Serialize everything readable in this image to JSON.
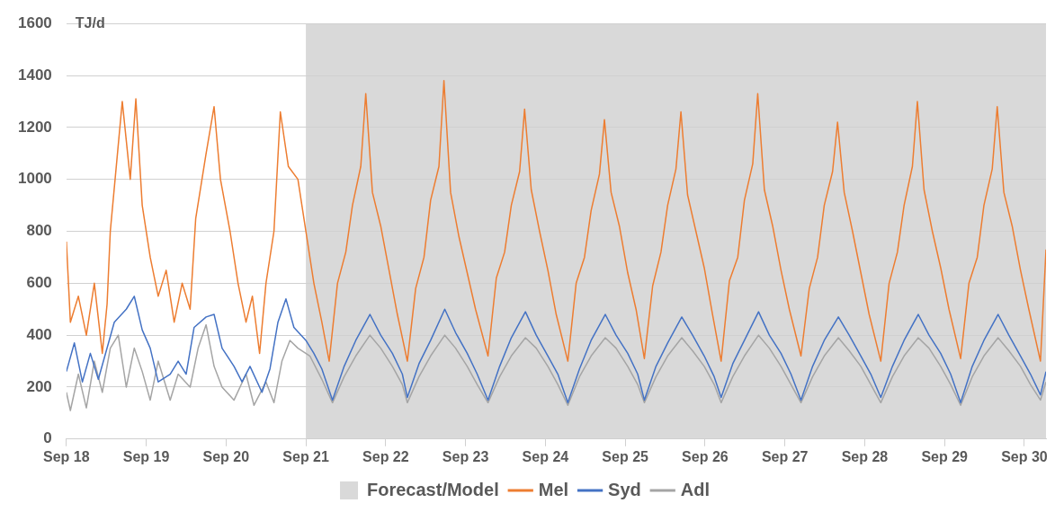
{
  "chart_data": {
    "type": "line",
    "ylabel": "TJ/d",
    "xlim": [
      "--09-18T00:00",
      "--09-30T06:30"
    ],
    "ylim": [
      0,
      1600
    ],
    "xticks": [
      {
        "value": "--09-18",
        "label": "Sep 18"
      },
      {
        "value": "--09-19",
        "label": "Sep 19"
      },
      {
        "value": "--09-20",
        "label": "Sep 20"
      },
      {
        "value": "--09-21",
        "label": "Sep 21"
      },
      {
        "value": "--09-22",
        "label": "Sep 22"
      },
      {
        "value": "--09-23",
        "label": "Sep 23"
      },
      {
        "value": "--09-24",
        "label": "Sep 24"
      },
      {
        "value": "--09-25",
        "label": "Sep 25"
      },
      {
        "value": "--09-26",
        "label": "Sep 26"
      },
      {
        "value": "--09-27",
        "label": "Sep 27"
      },
      {
        "value": "--09-28",
        "label": "Sep 28"
      },
      {
        "value": "--09-29",
        "label": "Sep 29"
      },
      {
        "value": "--09-30",
        "label": "Sep 30"
      }
    ],
    "yticks": [
      0,
      200,
      400,
      600,
      800,
      1000,
      1200,
      1400,
      1600
    ],
    "grid": "y",
    "legend": "bottom",
    "marker": "none",
    "line_style": "solid",
    "bands": [
      {
        "axis": "x",
        "from": "--09-21T00:00",
        "to": "--09-30T06:30",
        "label": "Forecast/Model",
        "color": "#d9d9d9"
      }
    ],
    "series": [
      {
        "name": "Mel",
        "color": "#ed7d31",
        "x": [
          "--09-18T00:00",
          "--09-18T01:12",
          "--09-18T03:36",
          "--09-18T06:00",
          "--09-18T08:24",
          "--09-18T10:48",
          "--09-18T12:14",
          "--09-18T13:12",
          "--09-18T16:48",
          "--09-18T19:12",
          "--09-18T20:53",
          "--09-18T22:48",
          "--09-19T01:12",
          "--09-19T03:36",
          "--09-19T06:00",
          "--09-19T08:24",
          "--09-19T10:48",
          "--09-19T13:12",
          "--09-19T14:53",
          "--09-19T18:00",
          "--09-19T20:24",
          "--09-19T22:19",
          "--09-20T01:12",
          "--09-20T03:36",
          "--09-20T06:00",
          "--09-20T07:55",
          "--09-20T10:05",
          "--09-20T12:00",
          "--09-20T14:24",
          "--09-20T16:19",
          "--09-20T18:43",
          "--09-20T21:36",
          "--09-21T00:00",
          "--09-21T02:24",
          "--09-21T04:48",
          "--09-21T07:00",
          "--09-21T09:30",
          "--09-21T12:00",
          "--09-21T14:00",
          "--09-21T16:30",
          "--09-21T18:00",
          "--09-21T20:00",
          "--09-21T22:30",
          "--09-22T01:00",
          "--09-22T03:30",
          "--09-22T06:30",
          "--09-22T09:00",
          "--09-22T11:30",
          "--09-22T13:30",
          "--09-22T16:00",
          "--09-22T17:30",
          "--09-22T19:30",
          "--09-22T22:00",
          "--09-23T00:30",
          "--09-23T03:00",
          "--09-23T06:45",
          "--09-23T09:15",
          "--09-23T11:45",
          "--09-23T13:45",
          "--09-23T16:15",
          "--09-23T17:45",
          "--09-23T19:45",
          "--09-23T22:15",
          "--09-24T00:45",
          "--09-24T03:15",
          "--09-24T06:45",
          "--09-24T09:15",
          "--09-24T11:45",
          "--09-24T13:45",
          "--09-24T16:15",
          "--09-24T17:45",
          "--09-24T19:45",
          "--09-24T22:15",
          "--09-25T00:45",
          "--09-25T03:15",
          "--09-25T05:45",
          "--09-25T08:15",
          "--09-25T10:45",
          "--09-25T12:45",
          "--09-25T15:15",
          "--09-25T16:45",
          "--09-25T18:45",
          "--09-25T21:15",
          "--09-25T23:45",
          "--09-26T02:15",
          "--09-26T04:50",
          "--09-26T07:20",
          "--09-26T09:50",
          "--09-26T11:50",
          "--09-26T14:20",
          "--09-26T15:50",
          "--09-26T17:50",
          "--09-26T20:20",
          "--09-26T22:50",
          "--09-27T01:20",
          "--09-27T04:50",
          "--09-27T07:20",
          "--09-27T09:50",
          "--09-27T11:50",
          "--09-27T14:20",
          "--09-27T15:50",
          "--09-27T17:50",
          "--09-27T20:20",
          "--09-27T22:50",
          "--09-28T01:20",
          "--09-28T04:50",
          "--09-28T07:20",
          "--09-28T09:50",
          "--09-28T11:50",
          "--09-28T14:20",
          "--09-28T15:50",
          "--09-28T17:50",
          "--09-28T20:20",
          "--09-28T22:50",
          "--09-29T01:20",
          "--09-29T04:50",
          "--09-29T07:20",
          "--09-29T09:50",
          "--09-29T11:50",
          "--09-29T14:20",
          "--09-29T15:50",
          "--09-29T17:50",
          "--09-29T20:20",
          "--09-29T22:50",
          "--09-30T01:20",
          "--09-30T04:50",
          "--09-30T06:30"
        ],
        "values": [
          760,
          450,
          550,
          400,
          600,
          330,
          520,
          800,
          1300,
          1000,
          1310,
          900,
          700,
          550,
          650,
          450,
          600,
          500,
          850,
          1100,
          1280,
          1000,
          800,
          600,
          450,
          550,
          330,
          600,
          800,
          1260,
          1050,
          1000,
          800,
          600,
          450,
          300,
          600,
          720,
          900,
          1050,
          1330,
          950,
          820,
          650,
          480,
          300,
          580,
          700,
          920,
          1050,
          1380,
          950,
          780,
          640,
          500,
          320,
          620,
          720,
          900,
          1030,
          1270,
          960,
          800,
          650,
          480,
          300,
          600,
          700,
          880,
          1020,
          1230,
          950,
          820,
          640,
          500,
          310,
          590,
          720,
          900,
          1040,
          1260,
          940,
          800,
          660,
          480,
          300,
          610,
          700,
          920,
          1060,
          1330,
          960,
          820,
          650,
          500,
          320,
          580,
          700,
          900,
          1030,
          1220,
          950,
          800,
          640,
          480,
          300,
          600,
          720,
          900,
          1050,
          1300,
          960,
          800,
          660,
          500,
          310,
          600,
          700,
          900,
          1040,
          1280,
          950,
          820,
          650,
          500,
          300,
          730
        ]
      },
      {
        "name": "Syd",
        "color": "#4472c4",
        "x": [
          "--09-18T00:00",
          "--09-18T02:24",
          "--09-18T04:48",
          "--09-18T07:12",
          "--09-18T09:36",
          "--09-18T12:00",
          "--09-18T14:24",
          "--09-18T18:00",
          "--09-18T20:24",
          "--09-18T22:48",
          "--09-19T01:12",
          "--09-19T03:36",
          "--09-19T07:12",
          "--09-19T09:36",
          "--09-19T12:00",
          "--09-19T14:24",
          "--09-19T18:00",
          "--09-19T20:24",
          "--09-19T22:48",
          "--09-20T02:24",
          "--09-20T04:48",
          "--09-20T07:12",
          "--09-20T10:48",
          "--09-20T13:12",
          "--09-20T15:36",
          "--09-20T18:00",
          "--09-20T20:24",
          "--09-21T00:00",
          "--09-21T02:24",
          "--09-21T04:48",
          "--09-21T08:00",
          "--09-21T11:30",
          "--09-21T15:00",
          "--09-21T19:15",
          "--09-21T22:30",
          "--09-22T02:00",
          "--09-22T05:00",
          "--09-22T06:30",
          "--09-22T10:00",
          "--09-22T13:30",
          "--09-22T17:45",
          "--09-22T21:00",
          "--09-23T00:30",
          "--09-23T03:30",
          "--09-23T06:45",
          "--09-23T10:15",
          "--09-23T13:45",
          "--09-23T18:00",
          "--09-23T21:15",
          "--09-24T00:45",
          "--09-24T03:45",
          "--09-24T06:45",
          "--09-24T10:15",
          "--09-24T13:45",
          "--09-24T18:00",
          "--09-24T21:15",
          "--09-25T00:45",
          "--09-25T03:45",
          "--09-25T05:45",
          "--09-25T09:15",
          "--09-25T12:45",
          "--09-25T17:00",
          "--09-25T20:15",
          "--09-25T23:45",
          "--09-26T02:45",
          "--09-26T04:50",
          "--09-26T08:20",
          "--09-26T11:50",
          "--09-26T16:05",
          "--09-26T19:20",
          "--09-26T22:50",
          "--09-27T01:50",
          "--09-27T04:50",
          "--09-27T08:20",
          "--09-27T11:50",
          "--09-27T16:05",
          "--09-27T19:20",
          "--09-27T22:50",
          "--09-28T01:50",
          "--09-28T04:50",
          "--09-28T08:20",
          "--09-28T11:50",
          "--09-28T16:05",
          "--09-28T19:20",
          "--09-28T22:50",
          "--09-29T01:50",
          "--09-29T04:50",
          "--09-29T08:20",
          "--09-29T11:50",
          "--09-29T16:05",
          "--09-29T19:20",
          "--09-29T22:50",
          "--09-30T01:50",
          "--09-30T04:50",
          "--09-30T06:30"
        ],
        "values": [
          260,
          370,
          220,
          330,
          230,
          340,
          450,
          500,
          550,
          420,
          350,
          220,
          250,
          300,
          250,
          430,
          470,
          480,
          350,
          280,
          220,
          280,
          180,
          270,
          450,
          540,
          430,
          380,
          330,
          270,
          150,
          280,
          380,
          480,
          400,
          330,
          250,
          160,
          290,
          380,
          500,
          410,
          330,
          250,
          150,
          280,
          390,
          490,
          400,
          320,
          250,
          140,
          270,
          380,
          480,
          400,
          330,
          250,
          150,
          280,
          370,
          470,
          400,
          320,
          240,
          160,
          290,
          380,
          490,
          400,
          330,
          250,
          150,
          280,
          380,
          470,
          400,
          320,
          250,
          160,
          280,
          380,
          480,
          400,
          330,
          250,
          140,
          280,
          380,
          480,
          400,
          320,
          250,
          170,
          260
        ]
      },
      {
        "name": "Adl",
        "color": "#a5a5a5",
        "x": [
          "--09-18T00:00",
          "--09-18T01:12",
          "--09-18T03:36",
          "--09-18T06:00",
          "--09-18T08:24",
          "--09-18T10:48",
          "--09-18T13:12",
          "--09-18T15:36",
          "--09-18T18:00",
          "--09-18T20:24",
          "--09-18T22:48",
          "--09-19T01:12",
          "--09-19T03:36",
          "--09-19T07:12",
          "--09-19T09:36",
          "--09-19T13:12",
          "--09-19T15:36",
          "--09-19T18:00",
          "--09-19T20:24",
          "--09-19T22:48",
          "--09-20T02:24",
          "--09-20T06:00",
          "--09-20T08:24",
          "--09-20T12:00",
          "--09-20T14:24",
          "--09-20T16:48",
          "--09-20T19:12",
          "--09-20T21:36",
          "--09-21T01:12",
          "--09-21T04:48",
          "--09-21T08:00",
          "--09-21T11:30",
          "--09-21T15:00",
          "--09-21T19:15",
          "--09-21T22:30",
          "--09-22T02:00",
          "--09-22T05:00",
          "--09-22T06:30",
          "--09-22T10:00",
          "--09-22T13:30",
          "--09-22T17:45",
          "--09-22T21:00",
          "--09-23T00:30",
          "--09-23T03:30",
          "--09-23T06:45",
          "--09-23T10:15",
          "--09-23T13:45",
          "--09-23T18:00",
          "--09-23T21:15",
          "--09-24T00:45",
          "--09-24T03:45",
          "--09-24T06:45",
          "--09-24T10:15",
          "--09-24T13:45",
          "--09-24T18:00",
          "--09-24T21:15",
          "--09-25T00:45",
          "--09-25T03:45",
          "--09-25T05:45",
          "--09-25T09:15",
          "--09-25T12:45",
          "--09-25T17:00",
          "--09-25T20:15",
          "--09-25T23:45",
          "--09-26T02:45",
          "--09-26T04:50",
          "--09-26T08:20",
          "--09-26T11:50",
          "--09-26T16:05",
          "--09-26T19:20",
          "--09-26T22:50",
          "--09-27T01:50",
          "--09-27T04:50",
          "--09-27T08:20",
          "--09-27T11:50",
          "--09-27T16:05",
          "--09-27T19:20",
          "--09-27T22:50",
          "--09-28T01:50",
          "--09-28T04:50",
          "--09-28T08:20",
          "--09-28T11:50",
          "--09-28T16:05",
          "--09-28T19:20",
          "--09-28T22:50",
          "--09-29T01:50",
          "--09-29T04:50",
          "--09-29T08:20",
          "--09-29T11:50",
          "--09-29T16:05",
          "--09-29T19:20",
          "--09-29T22:50",
          "--09-30T01:50",
          "--09-30T04:50",
          "--09-30T06:30"
        ],
        "values": [
          180,
          110,
          250,
          120,
          300,
          180,
          350,
          400,
          200,
          350,
          260,
          150,
          300,
          150,
          250,
          200,
          350,
          440,
          280,
          200,
          150,
          250,
          130,
          220,
          140,
          300,
          380,
          350,
          320,
          230,
          140,
          240,
          320,
          400,
          350,
          280,
          210,
          140,
          240,
          320,
          400,
          350,
          280,
          210,
          140,
          240,
          320,
          390,
          350,
          280,
          210,
          130,
          240,
          320,
          390,
          350,
          280,
          210,
          140,
          240,
          320,
          390,
          340,
          280,
          210,
          140,
          240,
          320,
          400,
          350,
          280,
          210,
          140,
          240,
          320,
          390,
          340,
          280,
          210,
          140,
          240,
          320,
          390,
          350,
          280,
          210,
          130,
          240,
          320,
          390,
          340,
          280,
          210,
          150,
          220
        ]
      }
    ]
  }
}
